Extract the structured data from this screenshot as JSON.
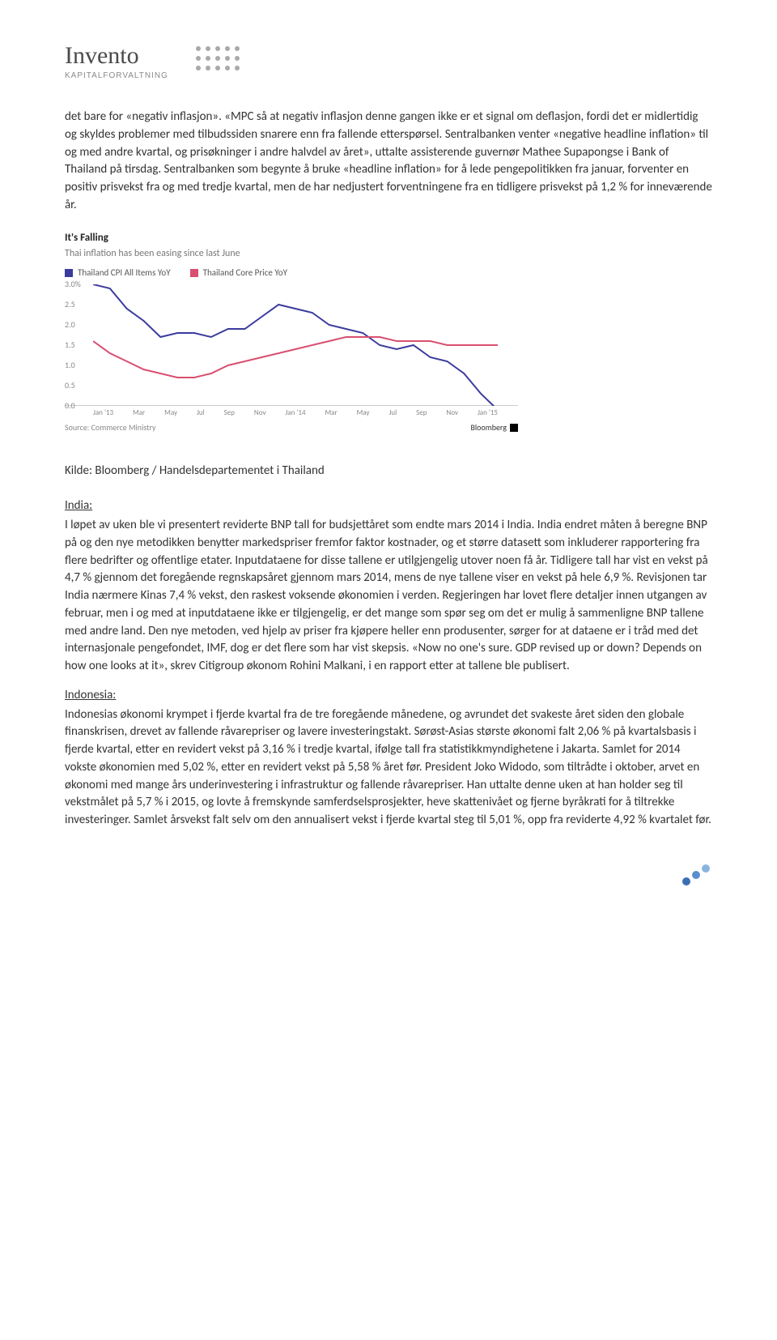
{
  "logo": {
    "brand": "Invento",
    "sub": "KAPITALFORVALTNING",
    "text_color": "#4a4a4a",
    "sub_color": "#8a8a8a",
    "dot_color": "#a9a9a9"
  },
  "para1": "det bare for «negativ inflasjon». «MPC så at negativ inflasjon denne gangen ikke er et signal om deflasjon, fordi det er midlertidig og skyldes problemer med tilbudssiden snarere enn fra fallende etterspørsel. Sentralbanken venter «negative headline inflation» til og med andre kvartal, og prisøkninger i andre halvdel av året», uttalte assisterende guvernør Mathee Supapongse i Bank of Thailand på tirsdag. Sentralbanken som begynte å bruke «headline inflation» for å lede pengepolitikken fra januar, forventer en positiv prisvekst fra og med tredje kvartal, men de har nedjustert forventningene fra en tidligere prisvekst på 1,2 % for inneværende år.",
  "chart": {
    "title": "It's Falling",
    "subtitle": "Thai inflation has been easing since last June",
    "series": [
      {
        "label": "Thailand CPI All Items YoY",
        "color": "#3b3b9e"
      },
      {
        "label": "Thailand Core Price YoY",
        "color": "#d94f70"
      }
    ],
    "yticks": [
      "3.0%",
      "2.5",
      "2.0",
      "1.5",
      "1.0",
      "0.5",
      "0.0"
    ],
    "ylim": [
      0,
      3
    ],
    "xticks": [
      "Jan '13",
      "Mar",
      "May",
      "Jul",
      "Sep",
      "Nov",
      "Jan '14",
      "Mar",
      "May",
      "Jul",
      "Sep",
      "Nov",
      "Jan '15"
    ],
    "cpi": [
      3.0,
      2.9,
      2.4,
      2.1,
      1.7,
      1.8,
      1.8,
      1.7,
      1.9,
      1.9,
      2.2,
      2.5,
      2.4,
      2.3,
      2.0,
      1.9,
      1.8,
      1.5,
      1.4,
      1.5,
      1.2,
      1.1,
      0.8,
      0.3,
      -0.1
    ],
    "core": [
      1.6,
      1.3,
      1.1,
      0.9,
      0.8,
      0.7,
      0.7,
      0.8,
      1.0,
      1.1,
      1.2,
      1.3,
      1.4,
      1.5,
      1.6,
      1.7,
      1.7,
      1.7,
      1.6,
      1.6,
      1.6,
      1.5,
      1.5,
      1.5,
      1.5
    ],
    "footer_source": "Source: Commerce Ministry",
    "footer_right": "Bloomberg",
    "line_width": 2,
    "bg": "#ffffff",
    "grid_color": "#eeeeee"
  },
  "source_line": "Kilde: Bloomberg / Handelsdepartementet i Thailand",
  "india": {
    "head": "India:",
    "body": "I løpet av uken ble vi presentert reviderte BNP tall for budsjettåret som endte mars 2014 i India. India endret måten å beregne BNP på og den nye metodikken benytter markedspriser fremfor faktor kostnader, og et større datasett som inkluderer rapportering fra flere bedrifter og offentlige etater. Inputdataene for disse tallene er utilgjengelig utover noen få år. Tidligere tall har vist en vekst på 4,7 % gjennom det foregående regnskapsåret gjennom mars 2014, mens de nye tallene viser en vekst på hele 6,9 %. Revisjonen tar India nærmere Kinas 7,4 % vekst, den raskest voksende økonomien i verden. Regjeringen har lovet flere detaljer innen utgangen av februar, men i og med at inputdataene ikke er tilgjengelig, er det mange som spør seg om det er mulig å sammenligne BNP tallene med andre land. Den nye metoden, ved hjelp av priser fra kjøpere heller enn produsenter, sørger for at dataene er i tråd med det internasjonale pengefondet, IMF, dog er det flere som har vist skepsis. «Now no one's sure. GDP revised up or down? Depends on how one looks at it», skrev Citigroup økonom Rohini Malkani, i en rapport etter at tallene ble publisert."
  },
  "indonesia": {
    "head": "Indonesia:",
    "body": "Indonesias økonomi krympet i fjerde kvartal fra de tre foregående månedene, og avrundet det svakeste året siden den globale finanskrisen, drevet av fallende råvarepriser og lavere investeringstakt. Sørøst-Asias største økonomi falt 2,06 % på kvartalsbasis i fjerde kvartal, etter en revidert vekst på 3,16 % i tredje kvartal, ifølge tall fra statistikkmyndighetene i Jakarta. Samlet for 2014 vokste økonomien med 5,02 %, etter en revidert vekst på 5,58 % året før. President Joko Widodo, som tiltrådte i oktober, arvet en økonomi med mange års underinvestering i infrastruktur og fallende råvarepriser. Han uttalte denne uken at han holder seg til vekstmålet på 5,7 % i 2015, og lovte å fremskynde samferdselsprosjekter, heve skattenivået og fjerne byråkrati for å tiltrekke investeringer. Samlet årsvekst falt selv om den annualisert vekst i fjerde kvartal steg til 5,01 %, opp fra reviderte 4,92 % kvartalet før."
  },
  "footer_dots": {
    "c1": "#3b6fb5",
    "c2": "#5a8fce",
    "c3": "#8ab4e0"
  }
}
